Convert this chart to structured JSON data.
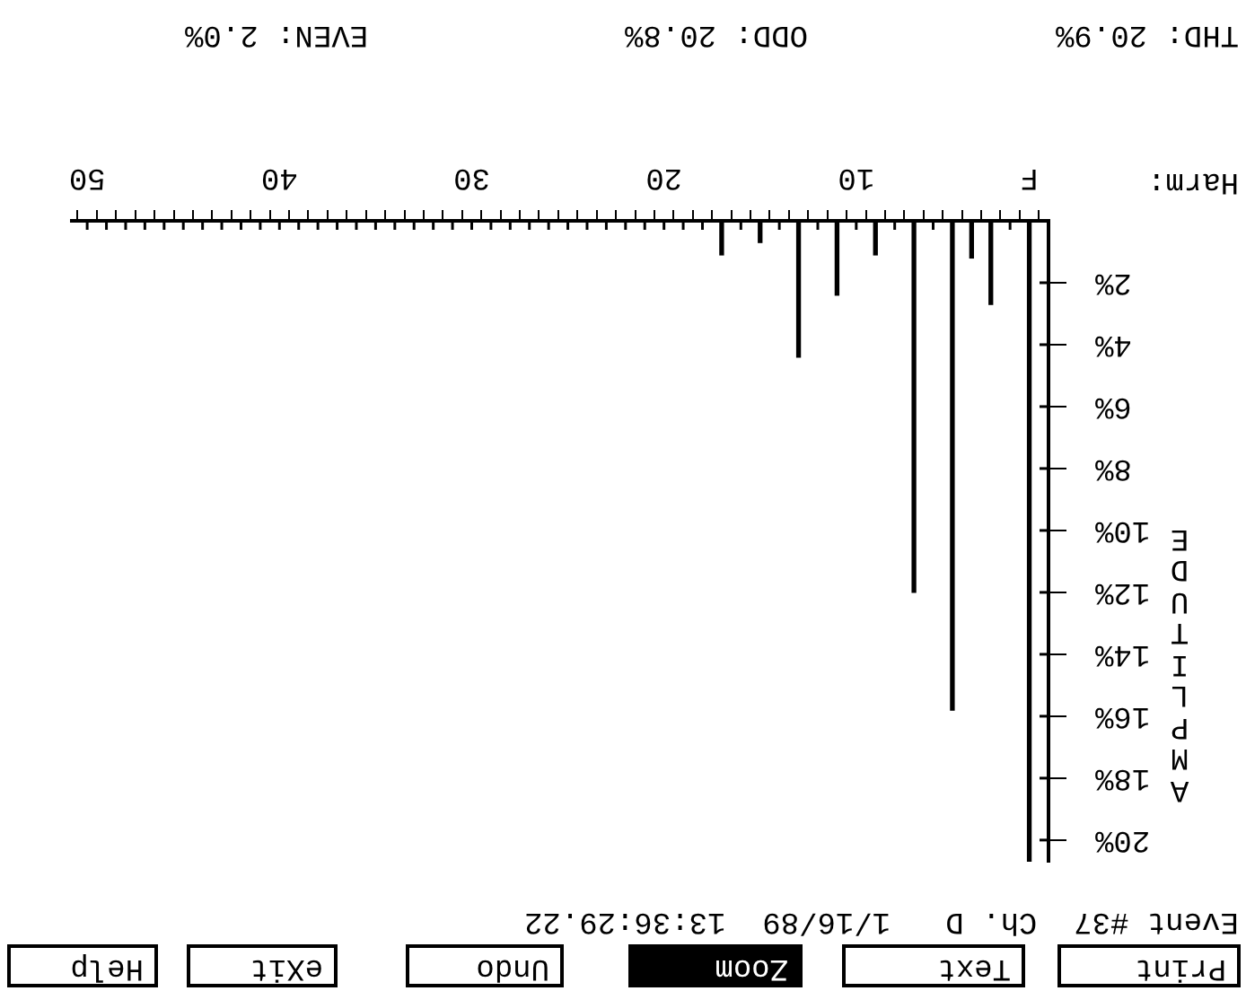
{
  "chart_data": {
    "type": "bar",
    "xlabel": "Harm:",
    "ylabel": "AMPLITUDE",
    "x": [
      1,
      3,
      4,
      5,
      7,
      9,
      11,
      13,
      15,
      17
    ],
    "values": [
      20.7,
      2.7,
      1.2,
      15.8,
      12.0,
      1.1,
      2.4,
      4.4,
      0.7,
      1.1
    ],
    "color": "#000000",
    "xlim": [
      50.8,
      0
    ],
    "xticks": [
      {
        "value": 1,
        "label": "F"
      },
      {
        "value": 2,
        "label": null
      },
      {
        "value": 3,
        "label": null
      },
      {
        "value": 4,
        "label": null
      },
      {
        "value": 5,
        "label": null
      },
      {
        "value": 6,
        "label": null
      },
      {
        "value": 7,
        "label": null
      },
      {
        "value": 8,
        "label": null
      },
      {
        "value": 9,
        "label": null
      },
      10,
      {
        "value": 11,
        "label": null
      },
      {
        "value": 12,
        "label": null
      },
      {
        "value": 13,
        "label": null
      },
      {
        "value": 14,
        "label": null
      },
      {
        "value": 15,
        "label": null
      },
      {
        "value": 16,
        "label": null
      },
      {
        "value": 17,
        "label": null
      },
      {
        "value": 18,
        "label": null
      },
      {
        "value": 19,
        "label": null
      },
      20,
      {
        "value": 21,
        "label": null
      },
      {
        "value": 22,
        "label": null
      },
      {
        "value": 23,
        "label": null
      },
      {
        "value": 24,
        "label": null
      },
      {
        "value": 25,
        "label": null
      },
      {
        "value": 26,
        "label": null
      },
      {
        "value": 27,
        "label": null
      },
      {
        "value": 28,
        "label": null
      },
      {
        "value": 29,
        "label": null
      },
      30,
      {
        "value": 31,
        "label": null
      },
      {
        "value": 32,
        "label": null
      },
      {
        "value": 33,
        "label": null
      },
      {
        "value": 34,
        "label": null
      },
      {
        "value": 35,
        "label": null
      },
      {
        "value": 36,
        "label": null
      },
      {
        "value": 37,
        "label": null
      },
      {
        "value": 38,
        "label": null
      },
      {
        "value": 39,
        "label": null
      },
      40,
      {
        "value": 41,
        "label": null
      },
      {
        "value": 42,
        "label": null
      },
      {
        "value": 43,
        "label": null
      },
      {
        "value": 44,
        "label": null
      },
      {
        "value": 45,
        "label": null
      },
      {
        "value": 46,
        "label": null
      },
      {
        "value": 47,
        "label": null
      },
      {
        "value": 48,
        "label": null
      },
      {
        "value": 49,
        "label": null
      },
      50
    ],
    "ylim": [
      20.7,
      0
    ],
    "yticks": [
      {
        "value": 2,
        "label": "2%"
      },
      {
        "value": 4,
        "label": "4%"
      },
      {
        "value": 6,
        "label": "6%"
      },
      {
        "value": 8,
        "label": "8%"
      },
      {
        "value": 10,
        "label": "10%"
      },
      {
        "value": 12,
        "label": "12%"
      },
      {
        "value": 14,
        "label": "14%"
      },
      {
        "value": 16,
        "label": "16%"
      },
      {
        "value": 18,
        "label": "18%"
      },
      {
        "value": 20,
        "label": "20%"
      }
    ],
    "annotations": [
      "Print",
      "Text",
      "Zoom",
      "Undo",
      "eXit",
      "Help",
      "Event #37  Ch. D   1/16/89  13:36:29.22",
      "THD: 20.9%",
      "ODD: 20.8%",
      "EVEN: 2.0%"
    ]
  }
}
